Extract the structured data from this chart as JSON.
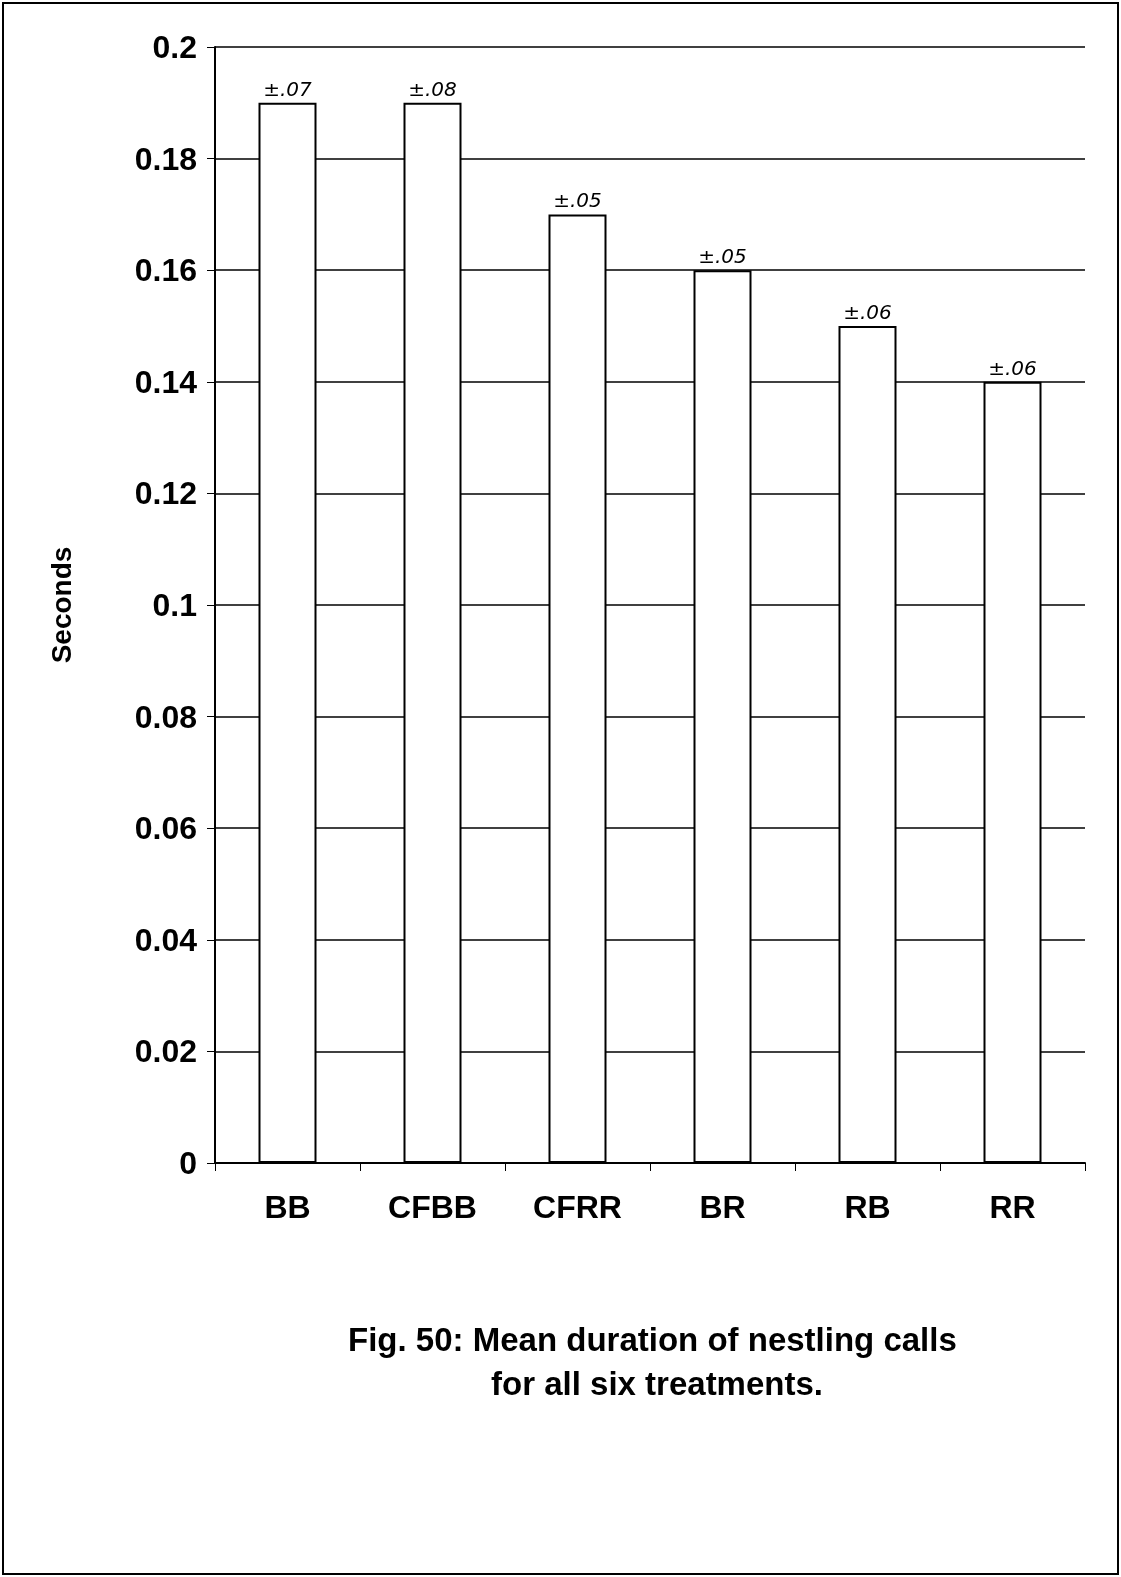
{
  "chart_data": {
    "type": "bar",
    "title": "Fig. 50: Mean duration of nestling calls for all six treatments.",
    "ylabel": "Seconds",
    "categories": [
      "BB",
      "CFBB",
      "CFRR",
      "BR",
      "RB",
      "RR"
    ],
    "values": [
      0.19,
      0.19,
      0.17,
      0.16,
      0.15,
      0.14
    ],
    "color": "#ffffff",
    "ylim": [
      0,
      0.2
    ],
    "yticks": [
      0,
      0.02,
      0.04,
      0.06,
      0.08,
      0.1,
      0.12,
      0.14,
      0.16,
      0.18,
      0.2
    ],
    "grid": "y",
    "annotations": [
      {
        "text": "±.07",
        "x": "BB",
        "y": 0.19
      },
      {
        "text": "±.08",
        "x": "CFBB",
        "y": 0.19
      },
      {
        "text": "±.05",
        "x": "CFRR",
        "y": 0.17
      },
      {
        "text": "±.05",
        "x": "BR",
        "y": 0.16
      },
      {
        "text": "±.06",
        "x": "RB",
        "y": 0.15
      },
      {
        "text": "±.06",
        "x": "RR",
        "y": 0.14
      }
    ]
  }
}
